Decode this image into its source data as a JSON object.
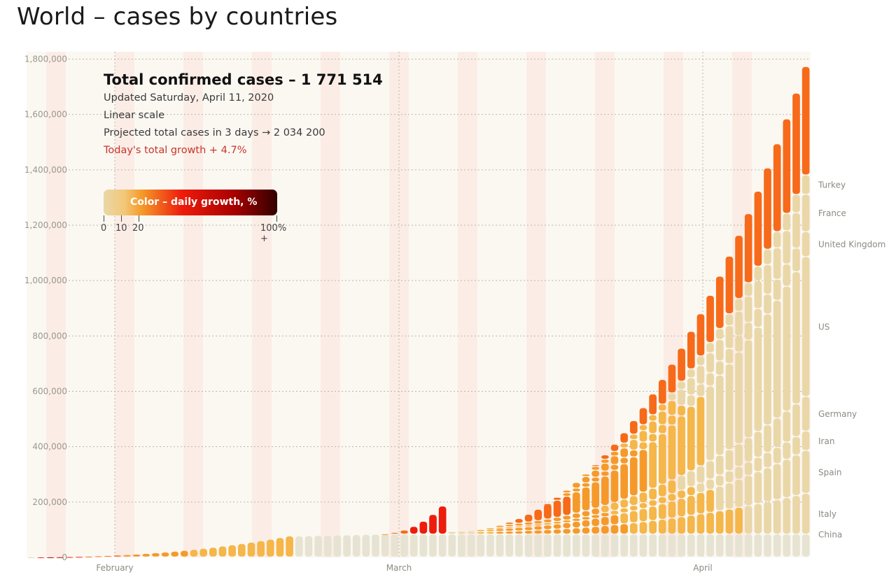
{
  "page": {
    "title": "World – cases by countries"
  },
  "info": {
    "headline": "Total confirmed cases – 1 771 514",
    "updated": "Updated Saturday, April 11, 2020",
    "scale": "Linear scale",
    "projection": "Projected total cases in 3 days → 2 034 200",
    "growth": "Today's total growth + 4.7%"
  },
  "legend": {
    "title": "Color – daily growth, %",
    "ticks": [
      "0",
      "10",
      "20",
      "100% +"
    ]
  },
  "colors": {
    "background": "#fbf8f2",
    "low_growth": "#ead7a8",
    "mid_growth": "#f59a2a",
    "high_growth": "#ee1c0c",
    "max_growth": "#320000",
    "weekend_band": "#fbe9e2",
    "china": "#e6e3d2"
  },
  "chart_data": {
    "type": "bar",
    "stacked": true,
    "x_labels": [
      "February",
      "March",
      "April"
    ],
    "y_ticks": [
      "0",
      "200,000",
      "400,000",
      "600,000",
      "800,000",
      "1,000,000",
      "1,200,000",
      "1,400,000",
      "1,600,000",
      "1,800,000"
    ],
    "ylim": [
      0,
      1800000
    ],
    "grid": true,
    "total_final": 1771514,
    "country_labels": [
      "China",
      "Italy",
      "Spain",
      "Iran",
      "Germany",
      "US",
      "United Kingdom",
      "France",
      "Turkey"
    ],
    "series": [
      {
        "name": "China",
        "start": 82000,
        "end": 83000
      },
      {
        "name": "Italy",
        "start": 83000,
        "end": 230000
      },
      {
        "name": "Spain",
        "start": 230000,
        "end": 385000
      },
      {
        "name": "Iran",
        "start": 385000,
        "end": 455000
      },
      {
        "name": "Germany",
        "start": 455000,
        "end": 580000
      },
      {
        "name": "US",
        "start": 580000,
        "end": 1085000
      },
      {
        "name": "United Kingdom",
        "start": 1085000,
        "end": 1175000
      },
      {
        "name": "France",
        "start": 1175000,
        "end": 1310000
      },
      {
        "name": "Turkey",
        "start": 1310000,
        "end": 1380000
      }
    ]
  }
}
